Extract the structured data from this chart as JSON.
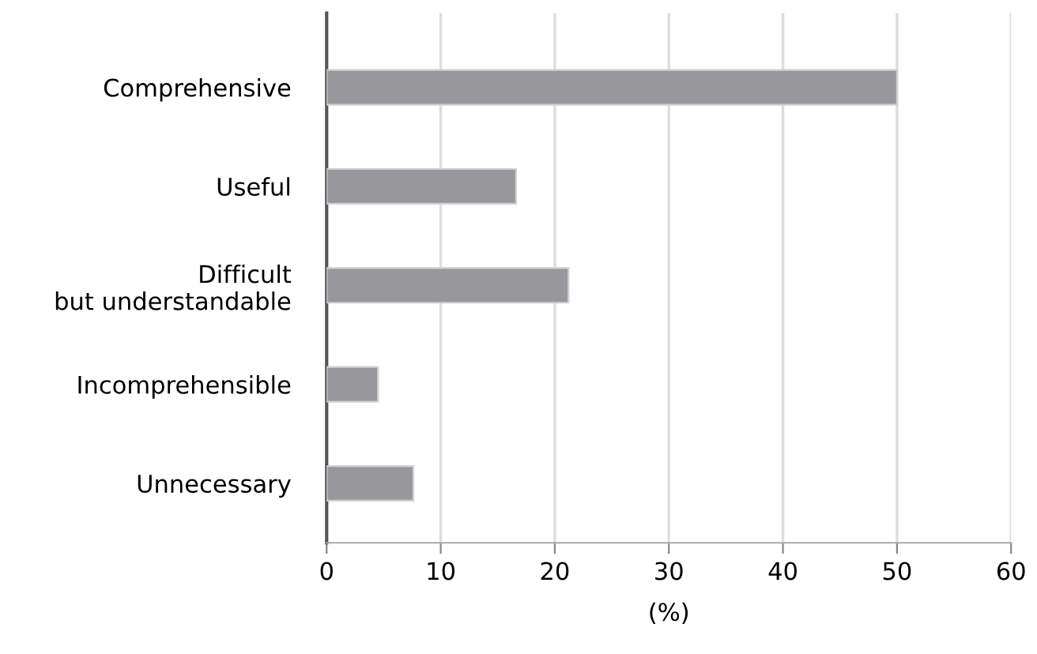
{
  "chart_data": {
    "type": "bar",
    "orientation": "horizontal",
    "xlabel": "(%)",
    "categories": [
      "Comprehensive",
      "Useful",
      "Difficult\nbut understandable",
      "Incomprehensible",
      "Unnecessary"
    ],
    "values": [
      50,
      16.6,
      21.2,
      4.5,
      7.6
    ],
    "color": "#97979c",
    "xlim": [
      0,
      60
    ],
    "xticks": [
      0,
      10,
      20,
      30,
      40,
      50,
      60
    ],
    "grid": "x"
  }
}
